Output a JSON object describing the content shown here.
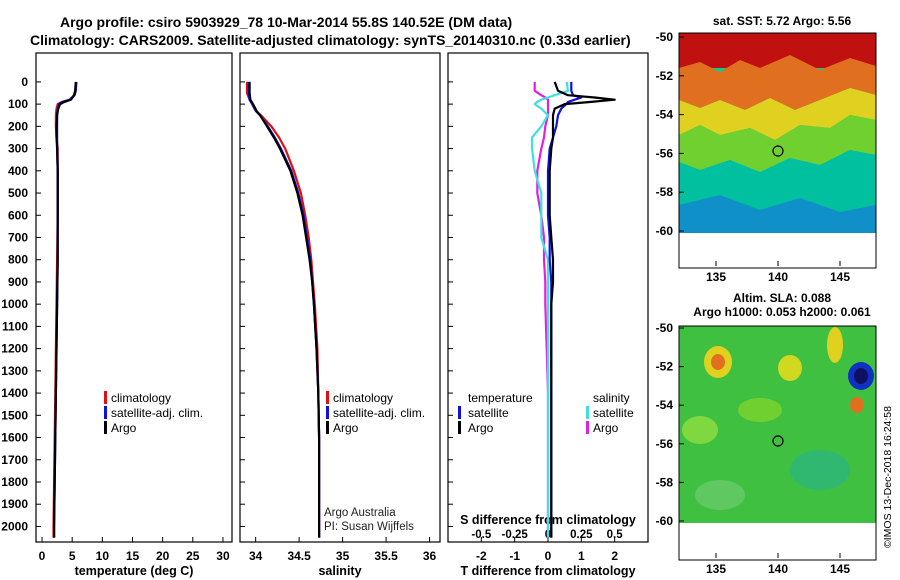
{
  "header": {
    "title_line1": "Argo profile: csiro 5903929_78 10-Mar-2014 55.8S 140.52E (DM data)",
    "title_line2": "Climatology: CARS2009. Satellite-adjusted climatology: synTS_20140310.nc (0.33d earlier)"
  },
  "colors": {
    "climatology": "#e01010",
    "satellite": "#1010e0",
    "argo": "#000000",
    "sat_s": "#40e0e0",
    "argo_s": "#e020e0"
  },
  "depth_ticks": [
    "0",
    "100",
    "200",
    "300",
    "400",
    "500",
    "600",
    "700",
    "800",
    "900",
    "1000",
    "1100",
    "1200",
    "1300",
    "1400",
    "1500",
    "1600",
    "1700",
    "1800",
    "1900",
    "2000"
  ],
  "panel_temp": {
    "xlabel": "temperature (deg C)",
    "ticks": [
      "0",
      "5",
      "10",
      "15",
      "20",
      "25",
      "30"
    ],
    "xlim": [
      -1,
      31.5
    ],
    "legend": [
      "climatology",
      "satellite-adj. clim.",
      "Argo"
    ],
    "depth": [
      0,
      40,
      60,
      80,
      90,
      100,
      120,
      150,
      200,
      250,
      300,
      400,
      600,
      800,
      1000,
      1200,
      1400,
      1600,
      1800,
      2000,
      2050
    ],
    "climatology": [
      5.6,
      5.5,
      5.3,
      4.6,
      3.3,
      2.6,
      2.4,
      2.3,
      2.3,
      2.4,
      2.6,
      2.6,
      2.6,
      2.5,
      2.4,
      2.3,
      2.2,
      2.1,
      2.0,
      1.9,
      1.9
    ],
    "satellite": [
      5.7,
      5.6,
      5.4,
      4.6,
      3.4,
      2.8,
      2.6,
      2.5,
      2.5,
      2.5,
      2.5,
      2.6,
      2.6,
      2.6,
      2.5,
      2.4,
      2.3,
      2.2,
      2.1,
      2.0,
      2.0
    ],
    "argo": [
      5.6,
      5.5,
      5.3,
      4.8,
      3.7,
      3.0,
      2.7,
      2.5,
      2.4,
      2.4,
      2.5,
      2.6,
      2.6,
      2.6,
      2.5,
      2.4,
      2.3,
      2.2,
      2.1,
      2.0,
      2.0
    ]
  },
  "panel_sal": {
    "xlabel": "salinity",
    "ticks": [
      "34",
      "34.5",
      "35",
      "35.5",
      "36"
    ],
    "tick_values": [
      34,
      34.5,
      35,
      35.5,
      36
    ],
    "xlim": [
      33.82,
      36.12
    ],
    "legend": [
      "climatology",
      "satellite-adj. clim.",
      "Argo"
    ],
    "credit_line1": "Argo Australia",
    "credit_line2": "PI: Susan Wijffels",
    "depth": [
      0,
      50,
      80,
      100,
      130,
      150,
      200,
      250,
      300,
      400,
      500,
      600,
      700,
      800,
      900,
      1000,
      1200,
      1400,
      1600,
      1800,
      2000,
      2050
    ],
    "climatology": [
      33.9,
      33.9,
      33.93,
      33.96,
      34.0,
      34.06,
      34.18,
      34.27,
      34.34,
      34.44,
      34.52,
      34.57,
      34.61,
      34.64,
      34.66,
      34.68,
      34.71,
      34.72,
      34.73,
      34.73,
      34.73,
      34.73
    ],
    "satellite": [
      33.92,
      33.92,
      33.93,
      33.96,
      34.0,
      34.05,
      34.14,
      34.22,
      34.29,
      34.41,
      34.49,
      34.55,
      34.59,
      34.63,
      34.65,
      34.67,
      34.7,
      34.72,
      34.73,
      34.73,
      34.73,
      34.73
    ],
    "argo": [
      33.93,
      33.93,
      33.94,
      33.97,
      34.01,
      34.05,
      34.13,
      34.21,
      34.28,
      34.4,
      34.48,
      34.54,
      34.58,
      34.62,
      34.65,
      34.67,
      34.7,
      34.72,
      34.73,
      34.73,
      34.73,
      34.73
    ]
  },
  "panel_diff": {
    "xlabel": "T difference from climatology",
    "ticks": [
      "-2",
      "-1",
      "0",
      "1",
      "2"
    ],
    "tick_values": [
      -2,
      -1,
      0,
      1,
      2
    ],
    "s_title": "S difference from climatology",
    "s_ticks": [
      "-0.5",
      "-0.25",
      "0",
      "0.25",
      "0.5"
    ],
    "s_tick_values": [
      -0.5,
      -0.25,
      0,
      0.25,
      0.5
    ],
    "xlim": [
      -3.0,
      3.0
    ],
    "legend_t_title": "temperature",
    "legend_t": [
      "satellite",
      "Argo"
    ],
    "legend_s_title": "salinity",
    "legend_s": [
      "satellite",
      "Argo"
    ],
    "depth": [
      0,
      40,
      60,
      70,
      80,
      90,
      100,
      120,
      150,
      200,
      250,
      300,
      400,
      500,
      600,
      700,
      800,
      900,
      1000,
      1200,
      1400,
      1600,
      1800,
      2000,
      2050
    ],
    "t_satellite": [
      0.7,
      0.7,
      0.75,
      1.0,
      0.8,
      0.6,
      0.55,
      0.4,
      0.3,
      0.25,
      0.15,
      0.05,
      0.0,
      0.0,
      0.0,
      0.05,
      0.05,
      0.1,
      0.1,
      0.1,
      0.1,
      0.1,
      0.1,
      0.1,
      0.1
    ],
    "t_argo": [
      0.2,
      0.3,
      0.6,
      1.4,
      2.0,
      1.3,
      0.5,
      0.2,
      0.15,
      0.15,
      0.15,
      0.1,
      0.05,
      0.05,
      0.05,
      0.1,
      0.15,
      0.15,
      0.1,
      0.1,
      0.1,
      0.1,
      0.1,
      0.1,
      0.1
    ],
    "s_satellite": [
      0.14,
      0.15,
      0.05,
      0.0,
      -0.05,
      -0.08,
      -0.1,
      -0.05,
      0.0,
      -0.05,
      -0.12,
      -0.12,
      -0.1,
      -0.05,
      -0.05,
      -0.05,
      0.0,
      0.0,
      0.0,
      0.0,
      0.0,
      0.0,
      0.0,
      0.0,
      0.0
    ],
    "s_argo": [
      -0.1,
      -0.1,
      -0.05,
      -0.02,
      0.0,
      0.0,
      0.0,
      0.0,
      0.0,
      -0.02,
      -0.03,
      -0.05,
      -0.08,
      -0.08,
      -0.05,
      -0.03,
      -0.03,
      -0.02,
      -0.02,
      -0.01,
      0.0,
      0.0,
      0.0,
      0.0,
      0.0
    ]
  },
  "map_sst": {
    "title": "sat. SST: 5.72 Argo: 5.56",
    "lat_ticks": [
      "-50",
      "-52",
      "-54",
      "-56",
      "-58",
      "-60"
    ],
    "lon_ticks": [
      "135",
      "140",
      "145"
    ]
  },
  "map_sla": {
    "title_line1": "Altim. SLA: 0.088",
    "title_line2": "Argo h1000: 0.053 h2000: 0.061",
    "lat_ticks": [
      "-50",
      "-52",
      "-54",
      "-56",
      "-58",
      "-60"
    ],
    "lon_ticks": [
      "135",
      "140",
      "145"
    ]
  },
  "footer": {
    "imos_stamp": "©IMOS 13-Dec-2018 16:24:58"
  }
}
